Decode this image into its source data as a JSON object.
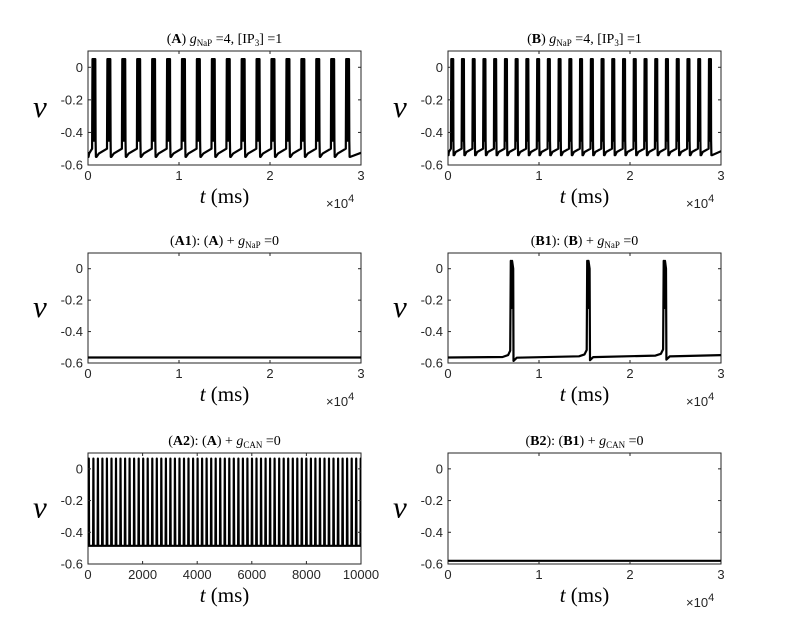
{
  "chart_data": [
    {
      "panel": "A",
      "type": "line",
      "title": "(A) gNaP =4, [IP3] =1",
      "title_parts": {
        "tag": "A",
        "g": "g",
        "sub": "NaP",
        "eq": " =4, [IP",
        "sub2": "3",
        "tail": "] =1"
      },
      "xlabel_var": "t",
      "xlabel_unit": " (ms)",
      "ylabel": "v",
      "xlim": [
        0,
        30000
      ],
      "ylim": [
        -0.6,
        0.1
      ],
      "x_ticks": [
        0,
        10000,
        20000,
        30000
      ],
      "x_tick_labels": [
        "0",
        "1",
        "2",
        "3"
      ],
      "x_multiplier": "×10",
      "x_multiplier_exp": "4",
      "y_ticks": [
        0,
        -0.2,
        -0.4,
        -0.6
      ],
      "y_tick_labels": [
        "0",
        "-0.2",
        "-0.4",
        "-0.6"
      ],
      "series": [
        {
          "kind": "bursting",
          "baseline_min": -0.55,
          "baseline_peak": -0.5,
          "spike_top": 0.05,
          "burst_times": [
            490,
            2130,
            3770,
            5410,
            7050,
            8690,
            10330,
            11970,
            13610,
            15250,
            16890,
            18530,
            20170,
            21810,
            23450,
            25090,
            26730,
            28370
          ],
          "spikes_per_burst": 6,
          "burst_width": 380
        }
      ]
    },
    {
      "panel": "B",
      "type": "line",
      "title": "(B) gNaP =4, [IP3] =1",
      "title_parts": {
        "tag": "B",
        "g": "g",
        "sub": "NaP",
        "eq": " =4, [IP",
        "sub2": "3",
        "tail": "] =1"
      },
      "xlabel_var": "t",
      "xlabel_unit": " (ms)",
      "ylabel": "v",
      "xlim": [
        0,
        30000
      ],
      "ylim": [
        -0.6,
        0.1
      ],
      "x_ticks": [
        0,
        10000,
        20000,
        30000
      ],
      "x_tick_labels": [
        "0",
        "1",
        "2",
        "3"
      ],
      "x_multiplier": "×10",
      "x_multiplier_exp": "4",
      "y_ticks": [
        0,
        -0.2,
        -0.4,
        -0.6
      ],
      "y_tick_labels": [
        "0",
        "-0.2",
        "-0.4",
        "-0.6"
      ],
      "series": [
        {
          "kind": "bursting",
          "baseline_min": -0.54,
          "baseline_peak": -0.5,
          "spike_top": 0.05,
          "burst_times": [
            360,
            1540,
            2720,
            3900,
            5080,
            6260,
            7440,
            8620,
            9800,
            10980,
            12160,
            13340,
            14520,
            15700,
            16880,
            18060,
            19240,
            20420,
            21600,
            22780,
            23960,
            25140,
            26320,
            27500,
            28680
          ],
          "spikes_per_burst": 5,
          "burst_width": 260
        }
      ]
    },
    {
      "panel": "A1",
      "type": "line",
      "title": "(A1): (A) + gNaP =0",
      "title_parts": {
        "tag": "A1",
        "mid": "): (",
        "tag2": "A",
        "plus": ") + ",
        "g": "g",
        "sub": "NaP",
        "eq": " =0"
      },
      "xlabel_var": "t",
      "xlabel_unit": " (ms)",
      "ylabel": "v",
      "xlim": [
        0,
        30000
      ],
      "ylim": [
        -0.6,
        0.1
      ],
      "x_ticks": [
        0,
        10000,
        20000,
        30000
      ],
      "x_tick_labels": [
        "0",
        "1",
        "2",
        "3"
      ],
      "x_multiplier": "×10",
      "x_multiplier_exp": "4",
      "y_ticks": [
        0,
        -0.2,
        -0.4,
        -0.6
      ],
      "y_tick_labels": [
        "0",
        "-0.2",
        "-0.4",
        "-0.6"
      ],
      "series": [
        {
          "kind": "flat",
          "value": -0.565
        }
      ]
    },
    {
      "panel": "B1",
      "type": "line",
      "title": "(B1): (B) + gNaP =0",
      "title_parts": {
        "tag": "B1",
        "mid": "): (",
        "tag2": "B",
        "plus": ") + ",
        "g": "g",
        "sub": "NaP",
        "eq": " =0"
      },
      "xlabel_var": "t",
      "xlabel_unit": " (ms)",
      "ylabel": "v",
      "xlim": [
        0,
        30000
      ],
      "ylim": [
        -0.6,
        0.1
      ],
      "x_ticks": [
        0,
        10000,
        20000,
        30000
      ],
      "x_tick_labels": [
        "0",
        "1",
        "2",
        "3"
      ],
      "x_multiplier": "×10",
      "x_multiplier_exp": "4",
      "y_ticks": [
        0,
        -0.2,
        -0.4,
        -0.6
      ],
      "y_tick_labels": [
        "0",
        "-0.2",
        "-0.4",
        "-0.6"
      ],
      "series": [
        {
          "kind": "sparse_bursts",
          "baseline_start": -0.565,
          "baseline_end": -0.55,
          "spike_top": 0.05,
          "burst_times": [
            6900,
            15300,
            23700
          ],
          "burst_width": 260
        }
      ]
    },
    {
      "panel": "A2",
      "type": "line",
      "title": "(A2): (A) + gCAN =0",
      "title_parts": {
        "tag": "A2",
        "mid": "): (",
        "tag2": "A",
        "plus": ") + ",
        "g": "g",
        "sub": "CAN",
        "eq": " =0"
      },
      "xlabel_var": "t",
      "xlabel_unit": " (ms)",
      "ylabel": "v",
      "xlim": [
        0,
        10000
      ],
      "ylim": [
        -0.6,
        0.1
      ],
      "x_ticks": [
        0,
        2000,
        4000,
        6000,
        8000,
        10000
      ],
      "x_tick_labels": [
        "0",
        "2000",
        "4000",
        "6000",
        "8000",
        "10000"
      ],
      "x_multiplier": "",
      "x_multiplier_exp": "",
      "y_ticks": [
        0,
        -0.2,
        -0.4,
        -0.6
      ],
      "y_tick_labels": [
        "0",
        "-0.2",
        "-0.4",
        "-0.6"
      ],
      "series": [
        {
          "kind": "tonic",
          "low": -0.485,
          "high": 0.065,
          "period": 166
        }
      ]
    },
    {
      "panel": "B2",
      "type": "line",
      "title": "(B2): (B1) + gCAN =0",
      "title_parts": {
        "tag": "B2",
        "mid": "): (",
        "tag2": "B1",
        "plus": ") + ",
        "g": "g",
        "sub": "CAN",
        "eq": " =0"
      },
      "xlabel_var": "t",
      "xlabel_unit": " (ms)",
      "ylabel": "v",
      "xlim": [
        0,
        30000
      ],
      "ylim": [
        -0.6,
        0.1
      ],
      "x_ticks": [
        0,
        10000,
        20000,
        30000
      ],
      "x_tick_labels": [
        "0",
        "1",
        "2",
        "3"
      ],
      "x_multiplier": "×10",
      "x_multiplier_exp": "4",
      "y_ticks": [
        0,
        -0.2,
        -0.4,
        -0.6
      ],
      "y_tick_labels": [
        "0",
        "-0.2",
        "-0.4",
        "-0.6"
      ],
      "series": [
        {
          "kind": "flat",
          "value": -0.58
        }
      ]
    }
  ]
}
